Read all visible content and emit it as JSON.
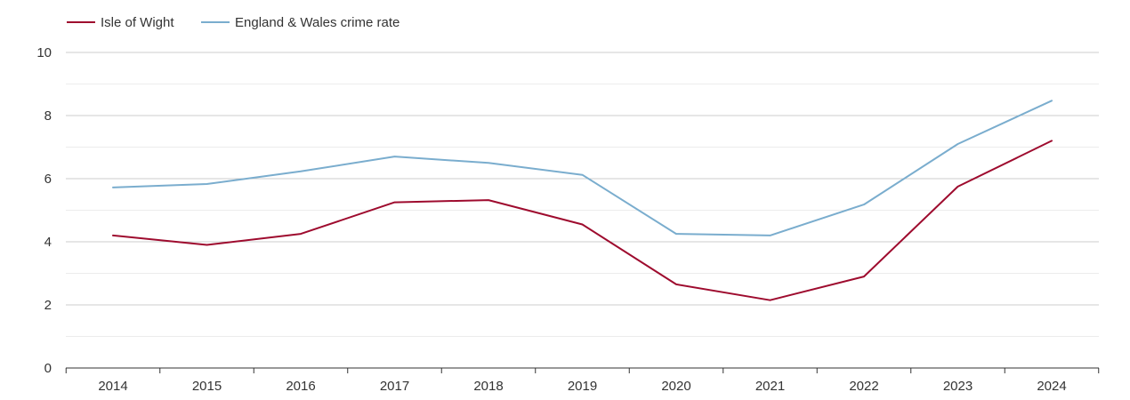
{
  "chart_data": {
    "type": "line",
    "title": "",
    "xlabel": "",
    "ylabel": "",
    "categories": [
      "2014",
      "2015",
      "2016",
      "2017",
      "2018",
      "2019",
      "2020",
      "2021",
      "2022",
      "2023",
      "2024"
    ],
    "ylim": [
      0,
      10
    ],
    "yticks": [
      "0",
      "2",
      "4",
      "6",
      "8",
      "10"
    ],
    "grid": true,
    "legend_position": "top-left",
    "series": [
      {
        "name": "Isle of Wight",
        "color": "#9e0b2e",
        "values": [
          4.2,
          3.9,
          4.25,
          5.25,
          5.32,
          4.55,
          2.65,
          2.15,
          2.9,
          5.75,
          7.2
        ]
      },
      {
        "name": "England & Wales crime rate",
        "color": "#7aadce",
        "values": [
          5.72,
          5.83,
          6.23,
          6.7,
          6.5,
          6.12,
          4.25,
          4.2,
          5.18,
          7.1,
          8.47
        ]
      }
    ]
  }
}
